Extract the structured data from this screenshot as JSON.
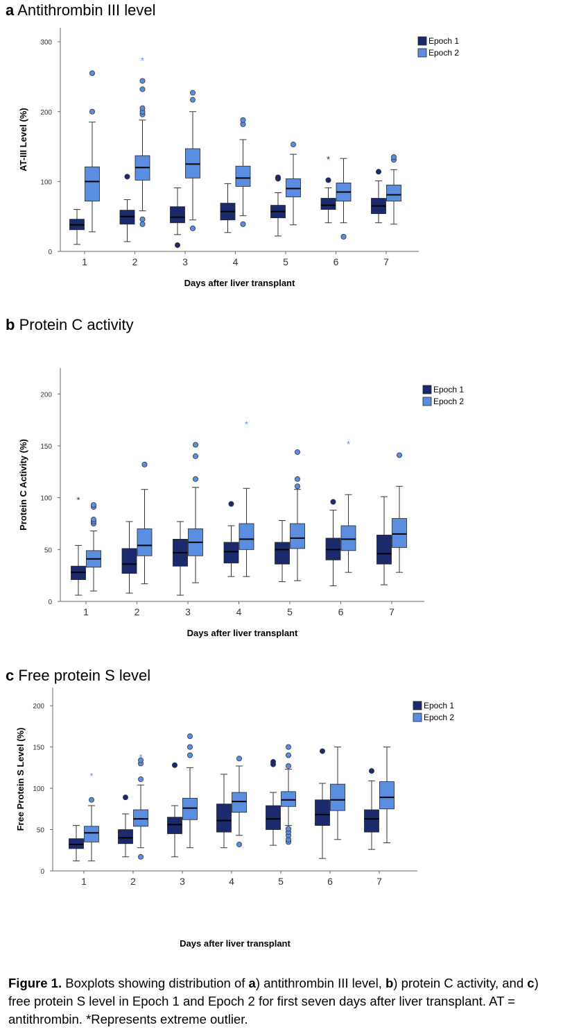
{
  "colors": {
    "epoch1": "#1a2a6c",
    "epoch2": "#5b8de0",
    "axis": "#666666",
    "whisker": "#333333"
  },
  "caption": {
    "figure_label": "Figure 1.",
    "text_1": " Boxplots showing distribution of ",
    "a": "a",
    "text_2": ") antithrombin III level, ",
    "b": "b",
    "text_3": ") protein C activity, and ",
    "c": "c",
    "text_4": ") free protein S level in Epoch 1 and Epoch 2 for first seven days after liver transplant. AT = antithrombin. *Represents extreme outlier."
  },
  "chart_data": [
    {
      "type": "boxplot",
      "panel_letter": "a",
      "title": "Antithrombin III level",
      "xlabel": "Days after liver transplant",
      "ylabel": "AT-III Level (%)",
      "ylim": [
        0,
        320
      ],
      "yticks": [
        0,
        100,
        200,
        300
      ],
      "categories": [
        "1",
        "2",
        "3",
        "4",
        "5",
        "6",
        "7"
      ],
      "legend": [
        "Epoch 1",
        "Epoch 2"
      ],
      "legend_position": "top-right",
      "series": [
        {
          "name": "Epoch 1",
          "boxes": [
            {
              "min": 10,
              "q1": 31,
              "median": 38,
              "q3": 46,
              "max": 60,
              "outliers": [],
              "extremes": []
            },
            {
              "min": 14,
              "q1": 39,
              "median": 50,
              "q3": 59,
              "max": 74,
              "outliers": [
                107
              ],
              "extremes": []
            },
            {
              "min": 24,
              "q1": 41,
              "median": 49,
              "q3": 64,
              "max": 91,
              "outliers": [
                9
              ],
              "extremes": []
            },
            {
              "min": 27,
              "q1": 45,
              "median": 57,
              "q3": 69,
              "max": 97,
              "outliers": [],
              "extremes": []
            },
            {
              "min": 22,
              "q1": 48,
              "median": 57,
              "q3": 66,
              "max": 84,
              "outliers": [
                104,
                106
              ],
              "extremes": []
            },
            {
              "min": 41,
              "q1": 60,
              "median": 66,
              "q3": 76,
              "max": 91,
              "outliers": [
                102
              ],
              "extremes": [
                132
              ]
            },
            {
              "min": 41,
              "q1": 54,
              "median": 65,
              "q3": 76,
              "max": 101,
              "outliers": [
                114
              ],
              "extremes": []
            }
          ]
        },
        {
          "name": "Epoch 2",
          "boxes": [
            {
              "min": 28,
              "q1": 72,
              "median": 100,
              "q3": 121,
              "max": 185,
              "outliers": [
                200,
                255
              ],
              "extremes": []
            },
            {
              "min": 58,
              "q1": 102,
              "median": 120,
              "q3": 137,
              "max": 188,
              "outliers": [
                39,
                46,
                196,
                200,
                205,
                232,
                244
              ],
              "extremes": [
                274
              ]
            },
            {
              "min": 45,
              "q1": 105,
              "median": 125,
              "q3": 147,
              "max": 200,
              "outliers": [
                33,
                217,
                227
              ],
              "extremes": []
            },
            {
              "min": 51,
              "q1": 93,
              "median": 105,
              "q3": 122,
              "max": 160,
              "outliers": [
                39,
                182,
                188
              ],
              "extremes": []
            },
            {
              "min": 38,
              "q1": 78,
              "median": 90,
              "q3": 104,
              "max": 139,
              "outliers": [
                153
              ],
              "extremes": []
            },
            {
              "min": 41,
              "q1": 72,
              "median": 85,
              "q3": 98,
              "max": 133,
              "outliers": [
                21
              ],
              "extremes": []
            },
            {
              "min": 39,
              "q1": 72,
              "median": 81,
              "q3": 95,
              "max": 117,
              "outliers": [
                131,
                135
              ],
              "extremes": []
            }
          ]
        }
      ]
    },
    {
      "type": "boxplot",
      "panel_letter": "b",
      "title": "Protein C activity",
      "xlabel": "Days after liver transplant",
      "ylabel": "Protein C Activity (%)",
      "ylim": [
        0,
        225
      ],
      "yticks": [
        0,
        50,
        100,
        150,
        200
      ],
      "categories": [
        "1",
        "2",
        "3",
        "4",
        "5",
        "6",
        "7"
      ],
      "legend": [
        "Epoch 1",
        "Epoch 2"
      ],
      "legend_position": "top-right",
      "series": [
        {
          "name": "Epoch 1",
          "boxes": [
            {
              "min": 6,
              "q1": 21,
              "median": 28,
              "q3": 34,
              "max": 54,
              "outliers": [],
              "extremes": [
                98
              ]
            },
            {
              "min": 8,
              "q1": 27,
              "median": 36,
              "q3": 51,
              "max": 77,
              "outliers": [],
              "extremes": []
            },
            {
              "min": 6,
              "q1": 34,
              "median": 47,
              "q3": 60,
              "max": 77,
              "outliers": [],
              "extremes": []
            },
            {
              "min": 24,
              "q1": 37,
              "median": 48,
              "q3": 57,
              "max": 73,
              "outliers": [
                94
              ],
              "extremes": []
            },
            {
              "min": 19,
              "q1": 36,
              "median": 50,
              "q3": 57,
              "max": 78,
              "outliers": [],
              "extremes": []
            },
            {
              "min": 15,
              "q1": 40,
              "median": 50,
              "q3": 61,
              "max": 88,
              "outliers": [
                96
              ],
              "extremes": []
            },
            {
              "min": 16,
              "q1": 36,
              "median": 46,
              "q3": 64,
              "max": 101,
              "outliers": [],
              "extremes": []
            }
          ]
        },
        {
          "name": "Epoch 2",
          "boxes": [
            {
              "min": 10,
              "q1": 33,
              "median": 41,
              "q3": 49,
              "max": 68,
              "outliers": [
                75,
                77,
                79,
                91,
                93
              ],
              "extremes": []
            },
            {
              "min": 17,
              "q1": 44,
              "median": 54,
              "q3": 70,
              "max": 108,
              "outliers": [
                132
              ],
              "extremes": []
            },
            {
              "min": 18,
              "q1": 44,
              "median": 57,
              "q3": 70,
              "max": 110,
              "outliers": [
                118,
                140,
                151
              ],
              "extremes": []
            },
            {
              "min": 24,
              "q1": 50,
              "median": 60,
              "q3": 75,
              "max": 109,
              "outliers": [],
              "extremes": [
                171
              ]
            },
            {
              "min": 20,
              "q1": 51,
              "median": 61,
              "q3": 75,
              "max": 108,
              "outliers": [
                111,
                118,
                144
              ],
              "extremes": []
            },
            {
              "min": 28,
              "q1": 49,
              "median": 60,
              "q3": 73,
              "max": 103,
              "outliers": [],
              "extremes": [
                152
              ]
            },
            {
              "min": 28,
              "q1": 52,
              "median": 65,
              "q3": 80,
              "max": 111,
              "outliers": [
                141
              ],
              "extremes": []
            }
          ]
        }
      ]
    },
    {
      "type": "boxplot",
      "panel_letter": "c",
      "title": "Free protein S level",
      "xlabel": "Days after liver transplant",
      "ylabel": "Free Protein S Level (%)",
      "ylim": [
        0,
        222
      ],
      "yticks": [
        0,
        50,
        100,
        150,
        200
      ],
      "categories": [
        "1",
        "2",
        "3",
        "4",
        "5",
        "6",
        "7"
      ],
      "legend": [
        "Epoch 1",
        "Epoch 2"
      ],
      "legend_position": "top-right",
      "series": [
        {
          "name": "Epoch 1",
          "boxes": [
            {
              "min": 12,
              "q1": 27,
              "median": 32,
              "q3": 39,
              "max": 55,
              "outliers": [],
              "extremes": []
            },
            {
              "min": 17,
              "q1": 33,
              "median": 40,
              "q3": 50,
              "max": 69,
              "outliers": [
                89
              ],
              "extremes": []
            },
            {
              "min": 17,
              "q1": 45,
              "median": 56,
              "q3": 65,
              "max": 79,
              "outliers": [
                128
              ],
              "extremes": []
            },
            {
              "min": 28,
              "q1": 47,
              "median": 61,
              "q3": 81,
              "max": 117,
              "outliers": [],
              "extremes": []
            },
            {
              "min": 31,
              "q1": 50,
              "median": 63,
              "q3": 79,
              "max": 95,
              "outliers": [
                129,
                132
              ],
              "extremes": []
            },
            {
              "min": 15,
              "q1": 55,
              "median": 68,
              "q3": 86,
              "max": 106,
              "outliers": [
                145
              ],
              "extremes": []
            },
            {
              "min": 26,
              "q1": 47,
              "median": 63,
              "q3": 74,
              "max": 109,
              "outliers": [
                121
              ],
              "extremes": []
            }
          ]
        },
        {
          "name": "Epoch 2",
          "boxes": [
            {
              "min": 12,
              "q1": 35,
              "median": 46,
              "q3": 54,
              "max": 79,
              "outliers": [
                86
              ],
              "extremes": [
                115
              ]
            },
            {
              "min": 28,
              "q1": 54,
              "median": 63,
              "q3": 74,
              "max": 104,
              "outliers": [
                17,
                111,
                130,
                134
              ],
              "extremes": [
                138
              ]
            },
            {
              "min": 28,
              "q1": 62,
              "median": 76,
              "q3": 88,
              "max": 125,
              "outliers": [
                140,
                150,
                163
              ],
              "extremes": []
            },
            {
              "min": 43,
              "q1": 71,
              "median": 84,
              "q3": 95,
              "max": 127,
              "outliers": [
                32,
                136
              ],
              "extremes": []
            },
            {
              "min": 55,
              "q1": 78,
              "median": 86,
              "q3": 96,
              "max": 123,
              "outliers": [
                35,
                38,
                43,
                47,
                51,
                127,
                140,
                150
              ],
              "extremes": []
            },
            {
              "min": 38,
              "q1": 73,
              "median": 86,
              "q3": 105,
              "max": 150,
              "outliers": [],
              "extremes": []
            },
            {
              "min": 34,
              "q1": 75,
              "median": 89,
              "q3": 108,
              "max": 150,
              "outliers": [],
              "extremes": []
            }
          ]
        }
      ]
    }
  ]
}
